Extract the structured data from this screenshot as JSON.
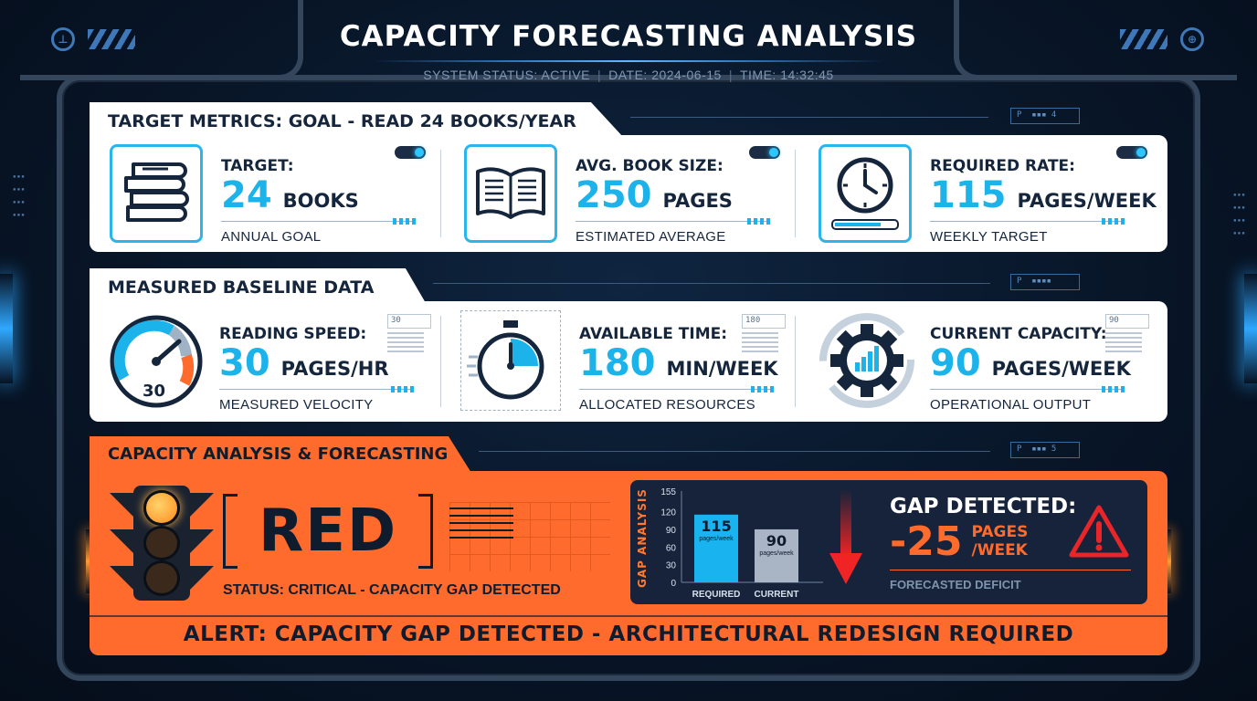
{
  "header": {
    "title": "CAPACITY FORECASTING ANALYSIS",
    "system_status": "SYSTEM STATUS: ACTIVE",
    "date": "DATE: 2024-06-15",
    "time": "TIME: 14:32:45"
  },
  "target_section": {
    "title": "TARGET METRICS: GOAL - READ 24 BOOKS/YEAR",
    "cards": [
      {
        "icon": "books-stack-icon",
        "label": "TARGET:",
        "value": "24",
        "unit": "BOOKS",
        "sub": "ANNUAL GOAL"
      },
      {
        "icon": "open-book-icon",
        "label": "AVG. BOOK SIZE:",
        "value": "250",
        "unit": "PAGES",
        "sub": "ESTIMATED AVERAGE"
      },
      {
        "icon": "clock-icon",
        "label": "REQUIRED RATE:",
        "value": "115",
        "unit": "PAGES/WEEK",
        "sub": "WEEKLY TARGET"
      }
    ]
  },
  "baseline_section": {
    "title": "MEASURED BASELINE DATA",
    "cards": [
      {
        "icon": "speedometer-icon",
        "gauge_value": "30",
        "label": "READING SPEED:",
        "value": "30",
        "unit": "PAGES/HR",
        "sub": "MEASURED VELOCITY",
        "mini": "30"
      },
      {
        "icon": "stopwatch-icon",
        "label": "AVAILABLE TIME:",
        "value": "180",
        "unit": "MIN/WEEK",
        "sub": "ALLOCATED RESOURCES",
        "mini": "180"
      },
      {
        "icon": "gear-chart-icon",
        "label": "CURRENT CAPACITY:",
        "value": "90",
        "unit": "PAGES/WEEK",
        "sub": "OPERATIONAL OUTPUT",
        "mini": "90"
      }
    ]
  },
  "analysis_section": {
    "title": "CAPACITY ANALYSIS & FORECASTING",
    "status_word": "RED",
    "status_text": "STATUS: CRITICAL - CAPACITY GAP DETECTED",
    "alert": "ALERT: CAPACITY GAP DETECTED - ARCHITECTURAL REDESIGN REQUIRED",
    "gap": {
      "heading": "GAP DETECTED:",
      "value": "-25",
      "unit": "PAGES /WEEK",
      "sub": "FORECASTED DEFICIT"
    }
  },
  "chart_data": {
    "type": "bar",
    "title": "GAP ANALYSIS",
    "categories": [
      "REQUIRED",
      "CURRENT"
    ],
    "values": [
      115,
      90
    ],
    "value_unit": "pages/week",
    "yticks": [
      0,
      30,
      60,
      90,
      120,
      155
    ],
    "ylim": [
      0,
      155
    ],
    "colors": [
      "#19b4f0",
      "#a9b5c4"
    ]
  },
  "colors": {
    "accent_blue": "#1cb2ea",
    "alert_orange": "#ff6b2c",
    "navy": "#0f1c2e"
  }
}
